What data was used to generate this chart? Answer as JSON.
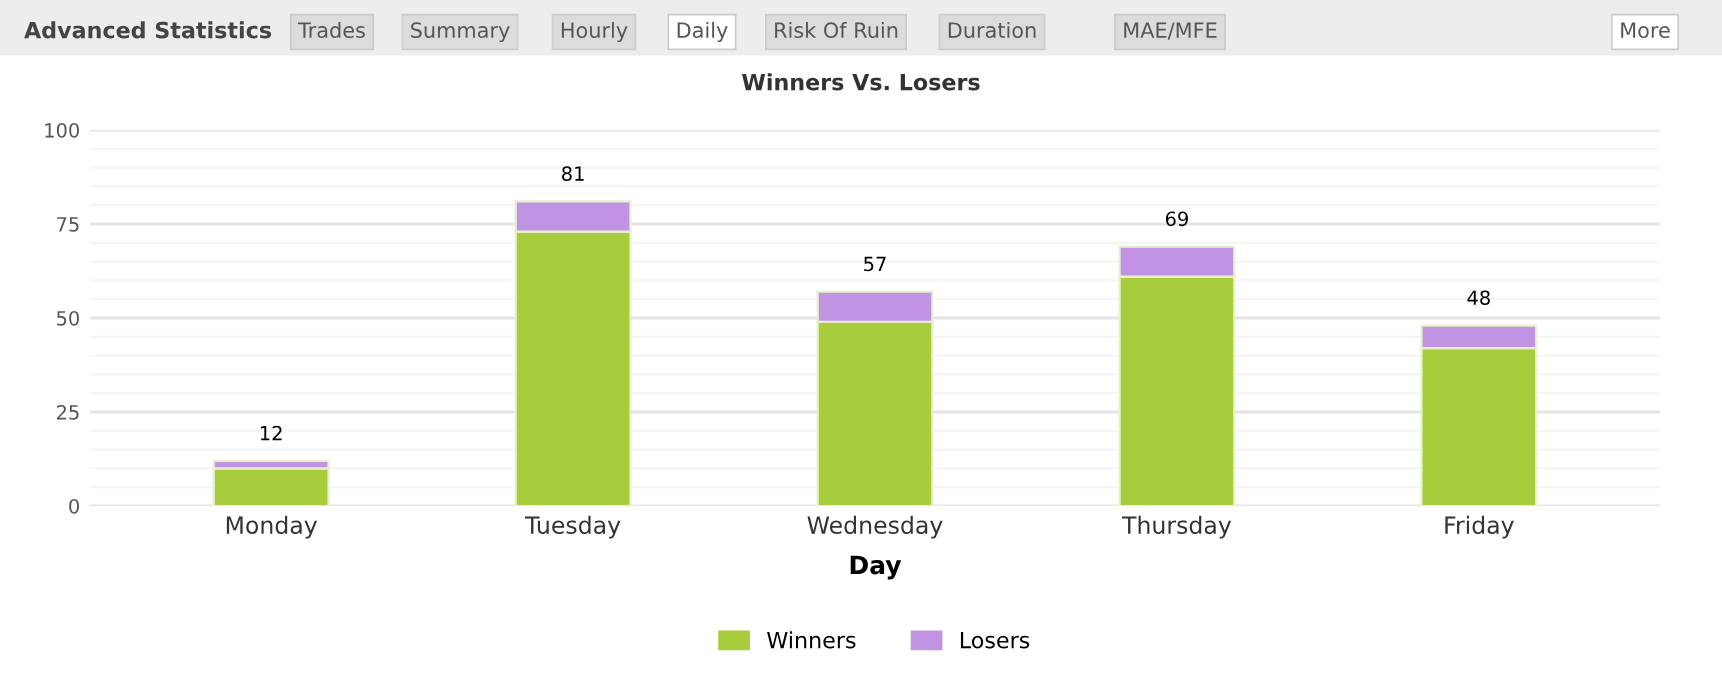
{
  "chart_data": {
    "type": "bar",
    "title": "Winners Vs. Losers",
    "xlabel": "Day",
    "categories": [
      "Monday",
      "Tuesday",
      "Wednesday",
      "Thursday",
      "Friday"
    ],
    "series": [
      {
        "name": "Winners",
        "color": "#a8cc3c",
        "values": [
          10,
          73,
          49,
          61,
          42
        ]
      },
      {
        "name": "Losers",
        "color": "#c094e2",
        "values": [
          2,
          8,
          8,
          8,
          6
        ]
      }
    ],
    "stacked": true,
    "totals": [
      "12",
      "81",
      "57",
      "69",
      "48"
    ],
    "ylim": [
      0,
      100
    ],
    "yticks": [
      0,
      25,
      50,
      75,
      100
    ],
    "grid": "y",
    "legend": "bottom",
    "annotations": [
      "Advanced Statistics",
      "Trades",
      "Summary",
      "Hourly",
      "Daily",
      "Risk Of Ruin",
      "Duration",
      "MAE/MFE",
      "More"
    ]
  }
}
